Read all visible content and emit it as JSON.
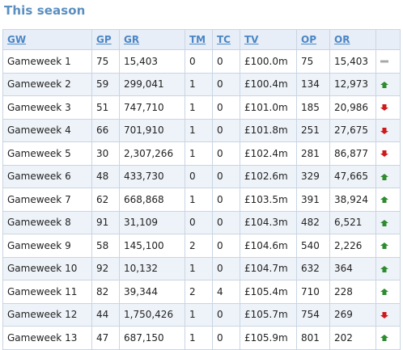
{
  "section_title": "This season",
  "columns": [
    "GW",
    "GP",
    "GR",
    "TM",
    "TC",
    "TV",
    "OP",
    "OR",
    ""
  ],
  "colors": {
    "up": "#2e8b2e",
    "down": "#cc1a1a",
    "same": "#a8a8a8"
  },
  "rows": [
    {
      "gw": "Gameweek 1",
      "gp": "75",
      "gr": "15,403",
      "tm": "0",
      "tc": "0",
      "tv": "£100.0m",
      "op": "75",
      "or": "15,403",
      "movement": "same"
    },
    {
      "gw": "Gameweek 2",
      "gp": "59",
      "gr": "299,041",
      "tm": "1",
      "tc": "0",
      "tv": "£100.4m",
      "op": "134",
      "or": "12,973",
      "movement": "up"
    },
    {
      "gw": "Gameweek 3",
      "gp": "51",
      "gr": "747,710",
      "tm": "1",
      "tc": "0",
      "tv": "£101.0m",
      "op": "185",
      "or": "20,986",
      "movement": "down"
    },
    {
      "gw": "Gameweek 4",
      "gp": "66",
      "gr": "701,910",
      "tm": "1",
      "tc": "0",
      "tv": "£101.8m",
      "op": "251",
      "or": "27,675",
      "movement": "down"
    },
    {
      "gw": "Gameweek 5",
      "gp": "30",
      "gr": "2,307,266",
      "tm": "1",
      "tc": "0",
      "tv": "£102.4m",
      "op": "281",
      "or": "86,877",
      "movement": "down"
    },
    {
      "gw": "Gameweek 6",
      "gp": "48",
      "gr": "433,730",
      "tm": "0",
      "tc": "0",
      "tv": "£102.6m",
      "op": "329",
      "or": "47,665",
      "movement": "up"
    },
    {
      "gw": "Gameweek 7",
      "gp": "62",
      "gr": "668,868",
      "tm": "1",
      "tc": "0",
      "tv": "£103.5m",
      "op": "391",
      "or": "38,924",
      "movement": "up"
    },
    {
      "gw": "Gameweek 8",
      "gp": "91",
      "gr": "31,109",
      "tm": "0",
      "tc": "0",
      "tv": "£104.3m",
      "op": "482",
      "or": "6,521",
      "movement": "up"
    },
    {
      "gw": "Gameweek 9",
      "gp": "58",
      "gr": "145,100",
      "tm": "2",
      "tc": "0",
      "tv": "£104.6m",
      "op": "540",
      "or": "2,226",
      "movement": "up"
    },
    {
      "gw": "Gameweek 10",
      "gp": "92",
      "gr": "10,132",
      "tm": "1",
      "tc": "0",
      "tv": "£104.7m",
      "op": "632",
      "or": "364",
      "movement": "up"
    },
    {
      "gw": "Gameweek 11",
      "gp": "82",
      "gr": "39,344",
      "tm": "2",
      "tc": "4",
      "tv": "£105.4m",
      "op": "710",
      "or": "228",
      "movement": "up"
    },
    {
      "gw": "Gameweek 12",
      "gp": "44",
      "gr": "1,750,426",
      "tm": "1",
      "tc": "0",
      "tv": "£105.7m",
      "op": "754",
      "or": "269",
      "movement": "down"
    },
    {
      "gw": "Gameweek 13",
      "gp": "47",
      "gr": "687,150",
      "tm": "1",
      "tc": "0",
      "tv": "£105.9m",
      "op": "801",
      "or": "202",
      "movement": "up"
    }
  ]
}
